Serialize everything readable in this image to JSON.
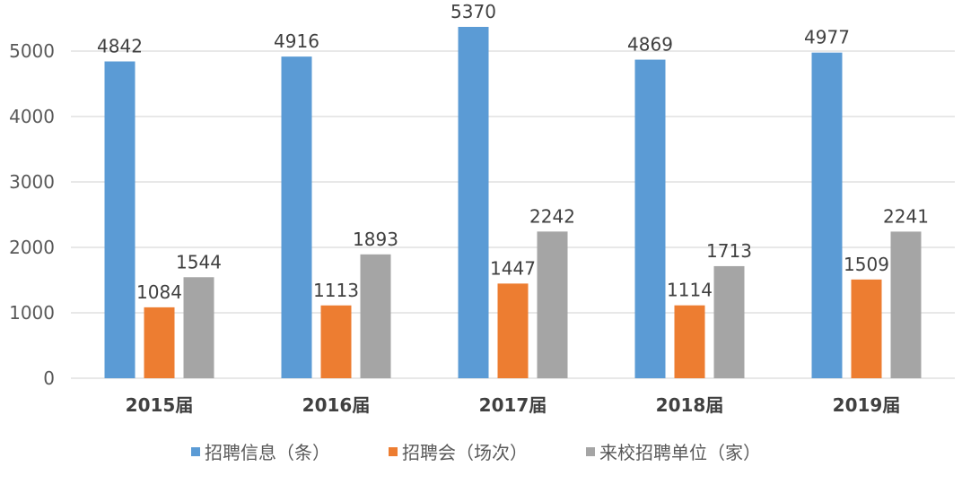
{
  "chart_data": {
    "type": "bar",
    "title": "",
    "xlabel": "",
    "ylabel": "",
    "ylim": [
      0,
      5000
    ],
    "yticks": [
      0,
      1000,
      2000,
      3000,
      4000,
      5000
    ],
    "grid": true,
    "legend_position": "bottom",
    "categories": [
      "2015届",
      "2016届",
      "2017届",
      "2018届",
      "2019届"
    ],
    "series": [
      {
        "name": "招聘信息（条）",
        "color": "#5b9bd5",
        "values": [
          4842,
          4916,
          5370,
          4869,
          4977
        ]
      },
      {
        "name": "招聘会（场次）",
        "color": "#ed7d31",
        "values": [
          1084,
          1113,
          1447,
          1114,
          1509
        ]
      },
      {
        "name": "来校招聘单位（家）",
        "color": "#a5a5a5",
        "values": [
          1544,
          1893,
          2242,
          1713,
          2241
        ]
      }
    ]
  }
}
